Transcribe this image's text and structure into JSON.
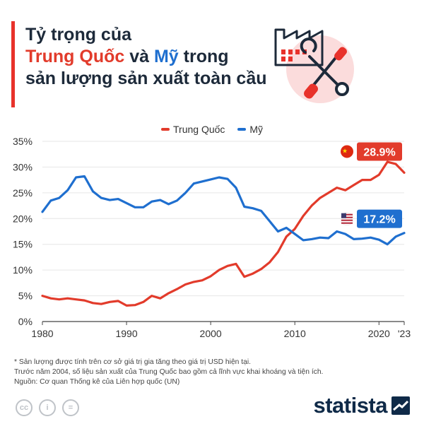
{
  "title": {
    "line1": "Tỷ trọng của",
    "china": "Trung Quốc",
    "conj": " và ",
    "us": "Mỹ",
    "rest": " trong",
    "line3": "sản lượng sản xuất toàn cầu"
  },
  "colors": {
    "china": "#e23b2b",
    "us": "#1f6fcf",
    "accent": "#e8322b",
    "brand": "#0f2a48",
    "grid": "#e6e6e6"
  },
  "chart_data": {
    "type": "line",
    "x_label": "",
    "y_label": "",
    "x_ticks": [
      "1980",
      "1990",
      "2000",
      "2010",
      "2020",
      "'23"
    ],
    "y_ticks": [
      "0%",
      "5%",
      "10%",
      "15%",
      "20%",
      "25%",
      "30%",
      "35%"
    ],
    "xlim": [
      1980,
      2023
    ],
    "ylim": [
      0,
      35
    ],
    "grid": true,
    "legend_position": "top",
    "series": [
      {
        "name": "Trung Quốc",
        "color": "#e23b2b",
        "end_label": "28.9%",
        "end_icon": "china-flag-icon",
        "points": [
          [
            1980,
            5.0
          ],
          [
            1981,
            4.5
          ],
          [
            1982,
            4.3
          ],
          [
            1983,
            4.5
          ],
          [
            1984,
            4.3
          ],
          [
            1985,
            4.1
          ],
          [
            1986,
            3.6
          ],
          [
            1987,
            3.4
          ],
          [
            1988,
            3.8
          ],
          [
            1989,
            4.0
          ],
          [
            1990,
            3.1
          ],
          [
            1991,
            3.2
          ],
          [
            1992,
            3.8
          ],
          [
            1993,
            5.0
          ],
          [
            1994,
            4.5
          ],
          [
            1995,
            5.5
          ],
          [
            1996,
            6.3
          ],
          [
            1997,
            7.2
          ],
          [
            1998,
            7.7
          ],
          [
            1999,
            8.0
          ],
          [
            2000,
            8.8
          ],
          [
            2001,
            10.0
          ],
          [
            2002,
            10.8
          ],
          [
            2003,
            11.2
          ],
          [
            2004,
            8.7
          ],
          [
            2005,
            9.3
          ],
          [
            2006,
            10.2
          ],
          [
            2007,
            11.5
          ],
          [
            2008,
            13.5
          ],
          [
            2009,
            16.5
          ],
          [
            2010,
            18.0
          ],
          [
            2011,
            20.5
          ],
          [
            2012,
            22.5
          ],
          [
            2013,
            24.0
          ],
          [
            2014,
            25.0
          ],
          [
            2015,
            26.0
          ],
          [
            2016,
            25.5
          ],
          [
            2017,
            26.5
          ],
          [
            2018,
            27.5
          ],
          [
            2019,
            27.5
          ],
          [
            2020,
            28.5
          ],
          [
            2021,
            31.0
          ],
          [
            2022,
            30.6
          ],
          [
            2023,
            28.9
          ]
        ]
      },
      {
        "name": "Mỹ",
        "color": "#1f6fcf",
        "end_label": "17.2%",
        "end_icon": "us-flag-icon",
        "points": [
          [
            1980,
            21.3
          ],
          [
            1981,
            23.5
          ],
          [
            1982,
            24.0
          ],
          [
            1983,
            25.5
          ],
          [
            1984,
            28.0
          ],
          [
            1985,
            28.2
          ],
          [
            1986,
            25.3
          ],
          [
            1987,
            24.0
          ],
          [
            1988,
            23.6
          ],
          [
            1989,
            23.8
          ],
          [
            1990,
            23.0
          ],
          [
            1991,
            22.2
          ],
          [
            1992,
            22.2
          ],
          [
            1993,
            23.3
          ],
          [
            1994,
            23.6
          ],
          [
            1995,
            22.8
          ],
          [
            1996,
            23.5
          ],
          [
            1997,
            25.0
          ],
          [
            1998,
            26.8
          ],
          [
            1999,
            27.2
          ],
          [
            2000,
            27.6
          ],
          [
            2001,
            28.0
          ],
          [
            2002,
            27.7
          ],
          [
            2003,
            26.0
          ],
          [
            2004,
            22.3
          ],
          [
            2005,
            22.0
          ],
          [
            2006,
            21.5
          ],
          [
            2007,
            19.5
          ],
          [
            2008,
            17.5
          ],
          [
            2009,
            18.2
          ],
          [
            2010,
            17.0
          ],
          [
            2011,
            15.8
          ],
          [
            2012,
            16.0
          ],
          [
            2013,
            16.3
          ],
          [
            2014,
            16.2
          ],
          [
            2015,
            17.5
          ],
          [
            2016,
            17.0
          ],
          [
            2017,
            16.0
          ],
          [
            2018,
            16.1
          ],
          [
            2019,
            16.3
          ],
          [
            2020,
            15.9
          ],
          [
            2021,
            15.0
          ],
          [
            2022,
            16.5
          ],
          [
            2023,
            17.2
          ]
        ]
      }
    ]
  },
  "footnotes": [
    "* Sản lượng được tính trên cơ sở giá trị gia tăng theo giá trị USD hiện tại.",
    "Trước năm 2004, số liệu sản xuất của Trung Quốc bao gồm cả lĩnh vực khai khoáng và tiện ích.",
    "Nguồn: Cơ quan Thống kê của Liên hợp quốc (UN)"
  ],
  "license_icons": [
    "cc-icon",
    "person-icon",
    "equals-icon"
  ],
  "license_marks": [
    "cc",
    "i",
    "="
  ],
  "brand": "statista"
}
